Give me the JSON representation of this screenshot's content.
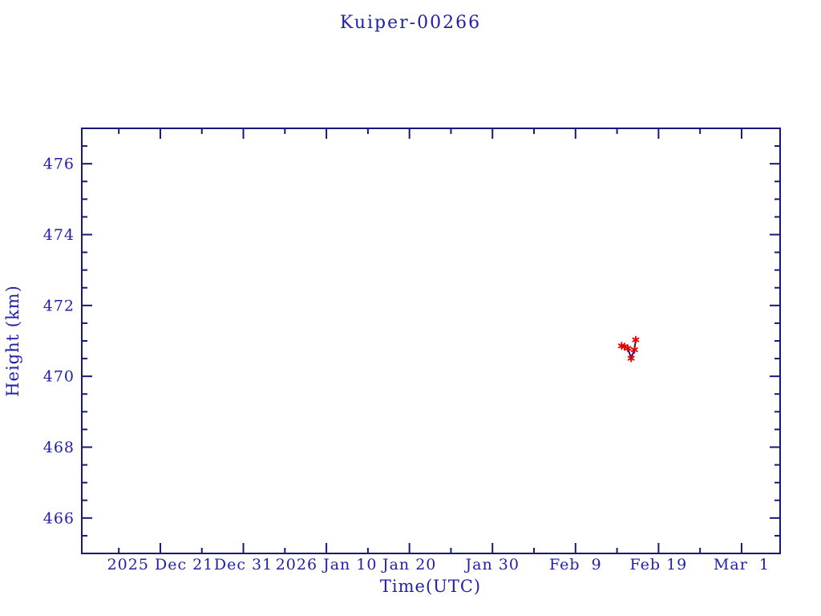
{
  "page": {
    "background": "#ffffff"
  },
  "chart_data": {
    "type": "line",
    "title": "Kuiper-00266",
    "xlabel": "Time(UTC)",
    "ylabel": "Height (km)",
    "grid": false,
    "legend_position": "none",
    "tick_style": "inward, mirrored on all four sides",
    "colors": {
      "background": "#ffffff",
      "axis": "#181878",
      "text": "#2121a8",
      "series_line": "#000080",
      "marker": "#e60000"
    },
    "x_day_zero": "2025 Dec 21",
    "xlim": [
      -9.46,
      74.64
    ],
    "ylim": [
      465.0,
      477.0
    ],
    "x_major_ticks": [
      {
        "day": 0,
        "label": "2025 Dec 21"
      },
      {
        "day": 10,
        "label": "Dec 31"
      },
      {
        "day": 20,
        "label": "2026 Jan 10"
      },
      {
        "day": 30,
        "label": "Jan 20"
      },
      {
        "day": 40,
        "label": "Jan 30"
      },
      {
        "day": 50,
        "label": "Feb  9"
      },
      {
        "day": 60,
        "label": "Feb 19"
      },
      {
        "day": 70,
        "label": "Mar  1"
      }
    ],
    "x_minor_step_days": 5,
    "y_major_ticks": [
      466,
      468,
      470,
      472,
      474,
      476
    ],
    "y_minor_step": 0.5,
    "series": [
      {
        "name": "height",
        "marker": "asterisk",
        "points": [
          {
            "day": 55.55,
            "height": 470.86,
            "approx_date": "Feb 14.6"
          },
          {
            "day": 55.9,
            "height": 470.84,
            "approx_date": "Feb 14.9"
          },
          {
            "day": 56.3,
            "height": 470.79,
            "approx_date": "Feb 15.3"
          },
          {
            "day": 56.7,
            "height": 470.51,
            "approx_date": "Feb 15.7"
          },
          {
            "day": 57.1,
            "height": 470.75,
            "approx_date": "Feb 16.1"
          },
          {
            "day": 57.25,
            "height": 471.03,
            "approx_date": "Feb 16.3"
          }
        ]
      }
    ]
  }
}
